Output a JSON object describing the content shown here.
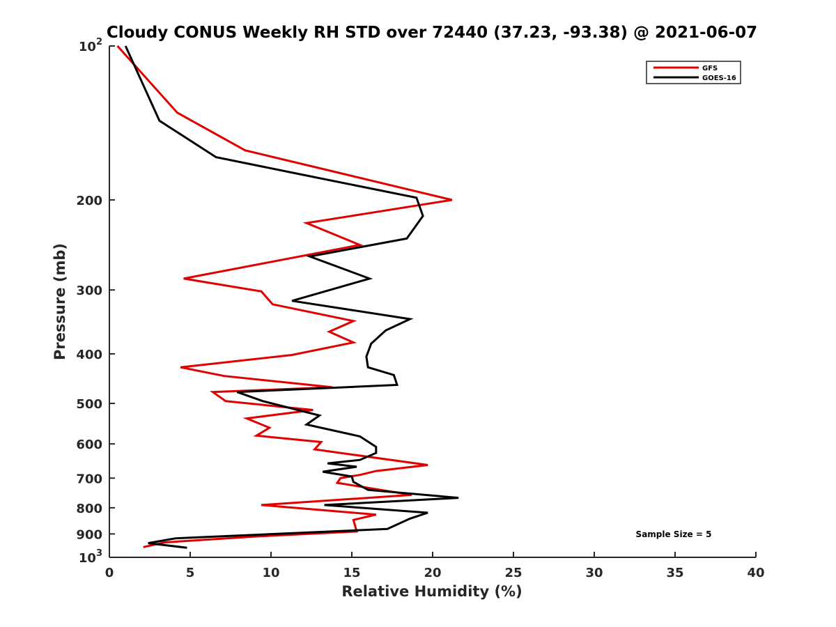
{
  "chart_data": {
    "type": "line",
    "title": "Cloudy CONUS Weekly RH STD over 72440 (37.23, -93.38) @ 2021-06-07",
    "xlabel": "Relative Humidity (%)",
    "ylabel": "Pressure (mb)",
    "xlim": [
      0,
      40
    ],
    "ylim": [
      100,
      1000
    ],
    "y_scale": "log",
    "y_reversed": true,
    "grid": false,
    "legend_position": "top-right",
    "x_ticks": [
      "0",
      "5",
      "10",
      "15",
      "20",
      "25",
      "30",
      "35",
      "40"
    ],
    "y_ticks": [
      {
        "value": 100,
        "label": "10",
        "exp": "2"
      },
      {
        "value": 200,
        "label": "200"
      },
      {
        "value": 300,
        "label": "300"
      },
      {
        "value": 400,
        "label": "400"
      },
      {
        "value": 500,
        "label": "500"
      },
      {
        "value": 600,
        "label": "600"
      },
      {
        "value": 700,
        "label": "700"
      },
      {
        "value": 800,
        "label": "800"
      },
      {
        "value": 900,
        "label": "900"
      },
      {
        "value": 1000,
        "label": "10",
        "exp": "3"
      }
    ],
    "annotation": "Sample Size = 5",
    "series": [
      {
        "name": "GFS",
        "color": "#e00000",
        "points": [
          [
            0.5,
            100
          ],
          [
            4.2,
            135
          ],
          [
            8.4,
            160
          ],
          [
            21.2,
            200
          ],
          [
            12.2,
            222
          ],
          [
            15.5,
            245
          ],
          [
            4.6,
            285
          ],
          [
            9.4,
            302
          ],
          [
            10.1,
            320
          ],
          [
            15.1,
            345
          ],
          [
            13.6,
            362
          ],
          [
            15.1,
            380
          ],
          [
            11.3,
            402
          ],
          [
            4.4,
            425
          ],
          [
            7.1,
            442
          ],
          [
            13.8,
            465
          ],
          [
            6.4,
            475
          ],
          [
            7.2,
            495
          ],
          [
            12.6,
            515
          ],
          [
            8.5,
            535
          ],
          [
            9.9,
            558
          ],
          [
            9.1,
            578
          ],
          [
            13.1,
            595
          ],
          [
            12.7,
            615
          ],
          [
            19.7,
            660
          ],
          [
            16.5,
            678
          ],
          [
            15.5,
            690
          ],
          [
            14.3,
            700
          ],
          [
            14.1,
            715
          ],
          [
            18.7,
            755
          ],
          [
            9.4,
            790
          ],
          [
            16.5,
            825
          ],
          [
            15.1,
            845
          ],
          [
            15.3,
            890
          ],
          [
            9.2,
            910
          ],
          [
            3.4,
            935
          ],
          [
            2.1,
            955
          ]
        ]
      },
      {
        "name": "GOES-16",
        "color": "#000000",
        "points": [
          [
            1.0,
            100
          ],
          [
            3.1,
            140
          ],
          [
            6.6,
            165
          ],
          [
            12.5,
            180
          ],
          [
            19.0,
            198
          ],
          [
            19.4,
            215
          ],
          [
            18.4,
            238
          ],
          [
            12.4,
            258
          ],
          [
            16.1,
            285
          ],
          [
            11.3,
            315
          ],
          [
            18.6,
            342
          ],
          [
            17.1,
            360
          ],
          [
            16.2,
            382
          ],
          [
            15.9,
            405
          ],
          [
            16.0,
            425
          ],
          [
            17.6,
            440
          ],
          [
            17.8,
            460
          ],
          [
            7.9,
            475
          ],
          [
            9.5,
            495
          ],
          [
            13.0,
            528
          ],
          [
            12.2,
            550
          ],
          [
            15.5,
            580
          ],
          [
            16.5,
            608
          ],
          [
            16.5,
            625
          ],
          [
            15.5,
            645
          ],
          [
            13.5,
            655
          ],
          [
            15.3,
            665
          ],
          [
            13.2,
            680
          ],
          [
            15.0,
            695
          ],
          [
            15.1,
            712
          ],
          [
            16.0,
            738
          ],
          [
            21.6,
            765
          ],
          [
            13.3,
            790
          ],
          [
            19.7,
            818
          ],
          [
            18.6,
            840
          ],
          [
            17.2,
            880
          ],
          [
            4.1,
            918
          ],
          [
            2.4,
            938
          ],
          [
            4.8,
            958
          ]
        ]
      }
    ]
  }
}
